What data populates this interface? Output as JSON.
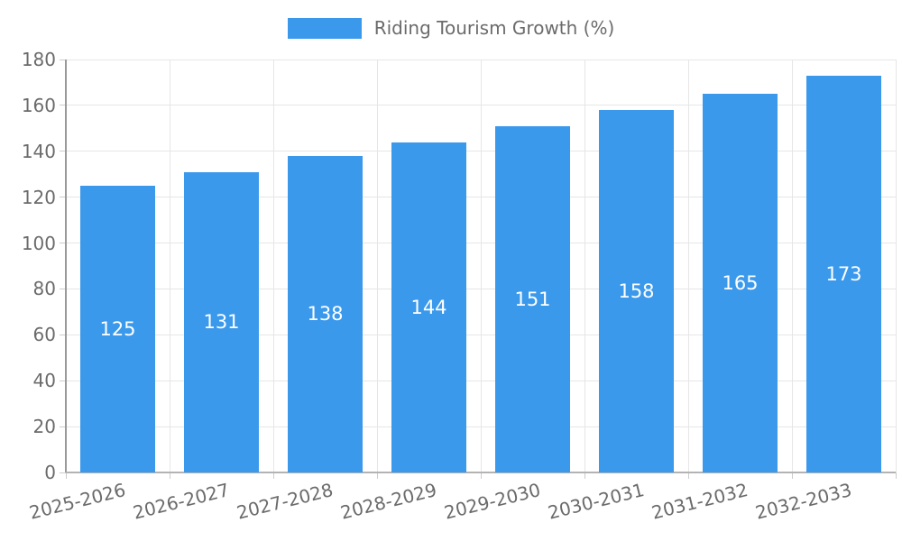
{
  "chart_data": {
    "type": "bar",
    "title": "Riding Tourism Growth (%)",
    "legend_position": "top",
    "categories": [
      "2025-2026",
      "2026-2027",
      "2027-2028",
      "2028-2029",
      "2029-2030",
      "2030-2031",
      "2031-2032",
      "2032-2033"
    ],
    "values": [
      125,
      131,
      138,
      144,
      151,
      158,
      165,
      173
    ],
    "ylim": [
      0,
      180
    ],
    "ytick_step": 20,
    "grid": true,
    "bar_color": "#3B99EC",
    "value_label_color": "#FFFFFF",
    "text_color": "#6B6B6B",
    "grid_color": "#E6E6E6",
    "y_axis_color": "#999999",
    "x_axis_color": "#B3B3B3",
    "tick_color": "#CCCCCC"
  }
}
